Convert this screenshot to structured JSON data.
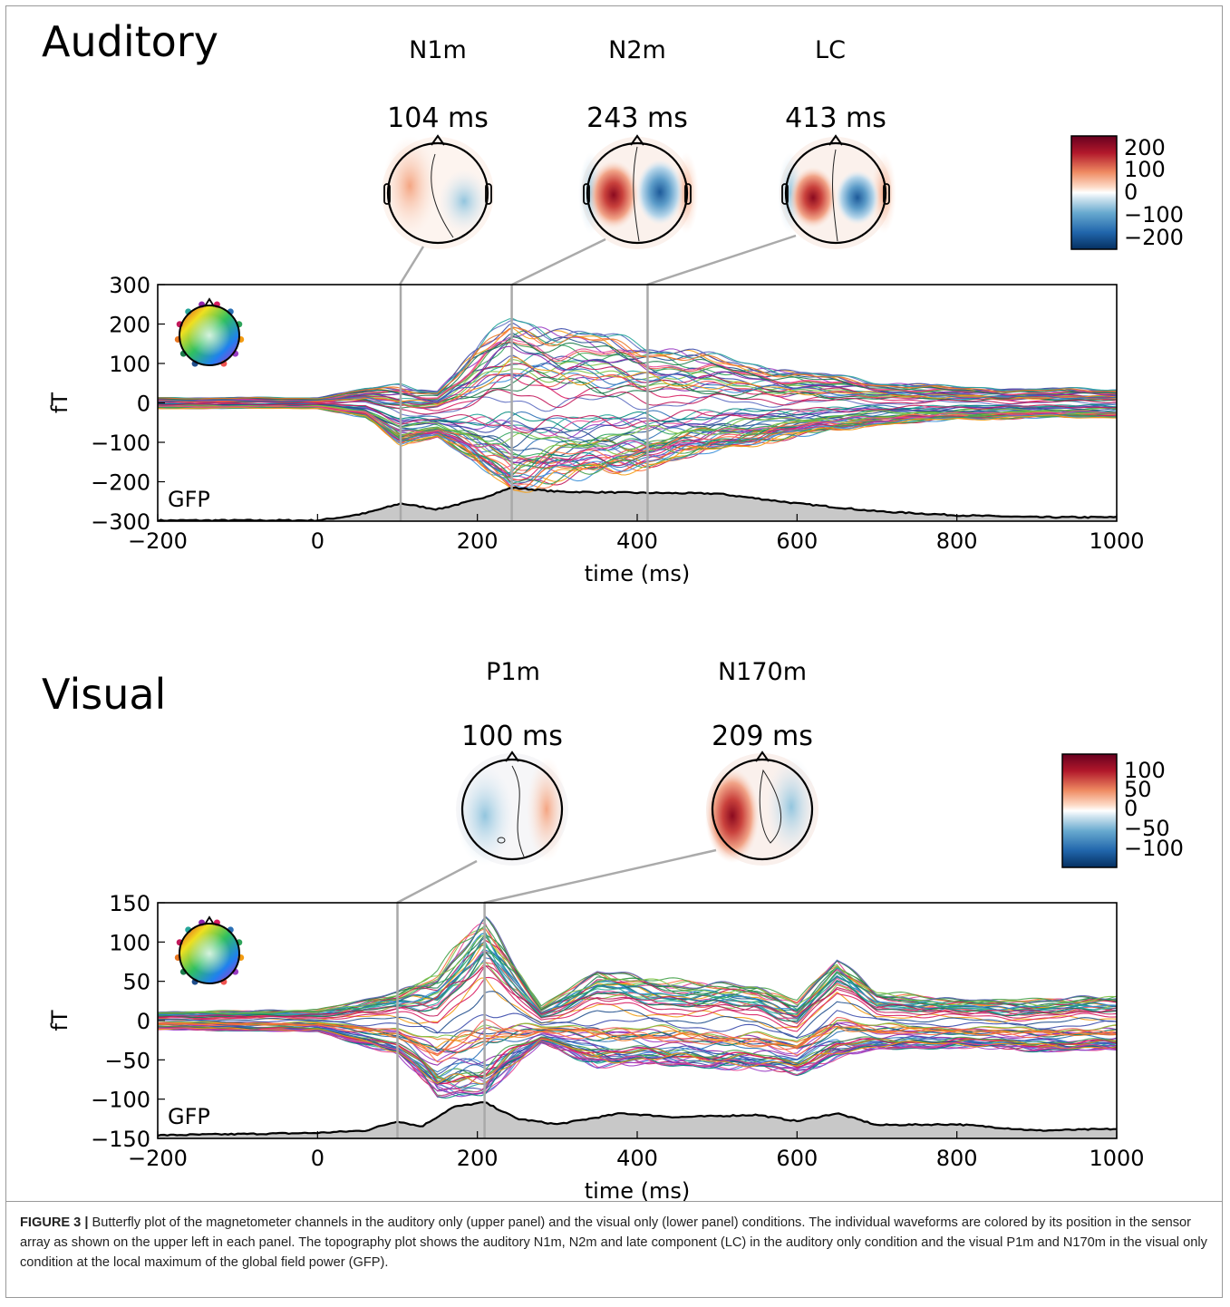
{
  "caption": {
    "label": "FIGURE 3 |",
    "text": "Butterfly plot of the magnetometer channels in the auditory only (upper panel) and the visual only (lower panel) conditions. The individual waveforms are colored by its position in the sensor array as shown on the upper left in each panel. The topography plot shows the auditory N1m, N2m and late component (LC) in the auditory only condition and the visual P1m and N170m in the visual only condition at the local maximum of the global field power (GFP)."
  },
  "chart_data": [
    {
      "type": "line",
      "panel_title": "Auditory",
      "xlabel": "time (ms)",
      "ylabel": "fT",
      "xlim": [
        -200,
        1000
      ],
      "ylim": [
        -300,
        300
      ],
      "xticks": [
        -200,
        0,
        200,
        400,
        600,
        800,
        1000
      ],
      "yticks": [
        300,
        200,
        100,
        0,
        -100,
        -200,
        -300
      ],
      "gfp_label": "GFP",
      "components": [
        {
          "name": "N1m",
          "latency_label": "104 ms",
          "t": 104
        },
        {
          "name": "N2m",
          "latency_label": "243 ms",
          "t": 243
        },
        {
          "name": "LC",
          "latency_label": "413 ms",
          "t": 413
        }
      ],
      "colorbar": {
        "ticks": [
          "200",
          "100",
          "0",
          "−100",
          "−200"
        ],
        "range": [
          -200,
          200
        ]
      },
      "waveform_envelope": {
        "t": [
          -200,
          0,
          60,
          104,
          150,
          200,
          243,
          300,
          400,
          500,
          600,
          700,
          800,
          900,
          1000
        ],
        "max": [
          15,
          15,
          40,
          55,
          40,
          150,
          250,
          210,
          175,
          130,
          90,
          60,
          45,
          40,
          40
        ],
        "min": [
          -15,
          -15,
          -40,
          -110,
          -90,
          -170,
          -240,
          -210,
          -180,
          -130,
          -90,
          -60,
          -45,
          -40,
          -40
        ]
      },
      "gfp": {
        "t": [
          -200,
          0,
          30,
          60,
          104,
          150,
          200,
          243,
          300,
          400,
          500,
          600,
          700,
          800,
          900,
          1000
        ],
        "v": [
          -298,
          -298,
          -290,
          -280,
          -255,
          -270,
          -245,
          -215,
          -225,
          -228,
          -230,
          -255,
          -275,
          -285,
          -290,
          -290
        ]
      }
    },
    {
      "type": "line",
      "panel_title": "Visual",
      "xlabel": "time (ms)",
      "ylabel": "fT",
      "xlim": [
        -200,
        1000
      ],
      "ylim": [
        -150,
        150
      ],
      "xticks": [
        -200,
        0,
        200,
        400,
        600,
        800,
        1000
      ],
      "yticks": [
        150,
        100,
        50,
        0,
        -50,
        -100,
        -150
      ],
      "gfp_label": "GFP",
      "components": [
        {
          "name": "P1m",
          "latency_label": "100 ms",
          "t": 100
        },
        {
          "name": "N170m",
          "latency_label": "209 ms",
          "t": 209
        }
      ],
      "colorbar": {
        "ticks": [
          "100",
          "50",
          "0",
          "−50",
          "−100"
        ],
        "range": [
          -100,
          100
        ]
      },
      "waveform_envelope": {
        "t": [
          -200,
          0,
          100,
          150,
          209,
          280,
          350,
          450,
          550,
          600,
          650,
          700,
          800,
          900,
          1000
        ],
        "max": [
          12,
          15,
          40,
          70,
          145,
          20,
          70,
          55,
          50,
          30,
          85,
          40,
          30,
          30,
          35
        ],
        "min": [
          -12,
          -15,
          -45,
          -100,
          -100,
          -30,
          -60,
          -60,
          -65,
          -70,
          -50,
          -40,
          -35,
          -40,
          -40
        ]
      },
      "gfp": {
        "t": [
          -200,
          0,
          60,
          100,
          130,
          170,
          209,
          250,
          300,
          380,
          450,
          550,
          600,
          650,
          700,
          800,
          900,
          1000
        ],
        "v": [
          -146,
          -143,
          -140,
          -128,
          -135,
          -110,
          -104,
          -125,
          -132,
          -118,
          -123,
          -120,
          -128,
          -118,
          -133,
          -132,
          -140,
          -138
        ]
      }
    }
  ],
  "colors": {
    "gfp_fill": "#c8c8c8",
    "marker": "#a9a9a9",
    "positive": "#b2182b",
    "negative": "#2166ac"
  }
}
